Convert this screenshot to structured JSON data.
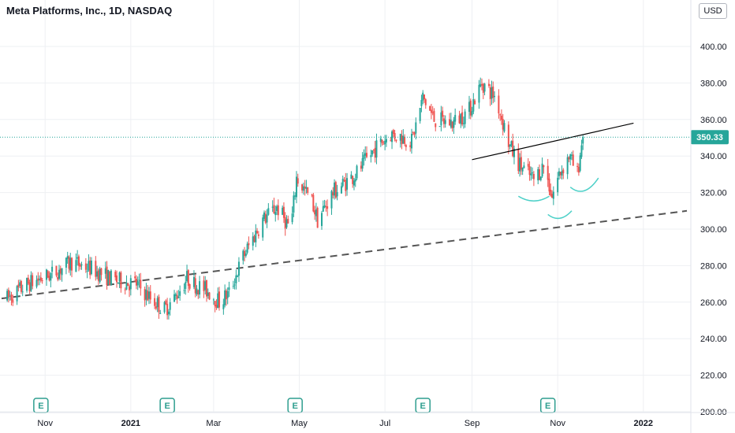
{
  "header": {
    "title": "Meta Platforms, Inc., 1D, NASDAQ",
    "currency": "USD"
  },
  "colors": {
    "up": "#26a69a",
    "down": "#ef5350",
    "last_price_line": "#26a69a",
    "trendline": "#000000",
    "dashed_line": "#555555",
    "arc": "#4dd0c8",
    "earnings_marker": "#2e9e8f",
    "grid": "#eef0f3"
  },
  "chart_data": {
    "type": "candlestick",
    "title": "Meta Platforms, Inc., 1D, NASDAQ",
    "currency": "USD",
    "ylim": [
      200,
      420
    ],
    "y_ticks": [
      "200.00",
      "220.00",
      "240.00",
      "260.00",
      "280.00",
      "300.00",
      "320.00",
      "340.00",
      "360.00",
      "380.00",
      "400.00"
    ],
    "x_ticks": [
      {
        "label": "Nov",
        "date": "2020-11-01",
        "bold": false
      },
      {
        "label": "2021",
        "date": "2021-01-01",
        "bold": true
      },
      {
        "label": "Mar",
        "date": "2021-03-01",
        "bold": false
      },
      {
        "label": "May",
        "date": "2021-05-01",
        "bold": false
      },
      {
        "label": "Jul",
        "date": "2021-07-01",
        "bold": false
      },
      {
        "label": "Sep",
        "date": "2021-09-01",
        "bold": false
      },
      {
        "label": "Nov",
        "date": "2021-11-01",
        "bold": false
      },
      {
        "label": "2022",
        "date": "2022-01-01",
        "bold": true
      }
    ],
    "x_range": [
      "2020-10-01",
      "2022-02-01"
    ],
    "last_price": 350.33,
    "last_price_label": "350.33",
    "series_anchors": [
      [
        "2020-10-05",
        262
      ],
      [
        "2020-10-20",
        270
      ],
      [
        "2020-11-05",
        275
      ],
      [
        "2020-11-20",
        282
      ],
      [
        "2020-12-05",
        278
      ],
      [
        "2020-12-20",
        272
      ],
      [
        "2021-01-05",
        270
      ],
      [
        "2021-01-15",
        262
      ],
      [
        "2021-01-25",
        256
      ],
      [
        "2021-02-01",
        262
      ],
      [
        "2021-02-10",
        273
      ],
      [
        "2021-02-15",
        270
      ],
      [
        "2021-02-25",
        266
      ],
      [
        "2021-03-05",
        260
      ],
      [
        "2021-03-12",
        265
      ],
      [
        "2021-03-22",
        285
      ],
      [
        "2021-04-05",
        305
      ],
      [
        "2021-04-15",
        312
      ],
      [
        "2021-04-25",
        300
      ],
      [
        "2021-04-29",
        328
      ],
      [
        "2021-05-10",
        315
      ],
      [
        "2021-05-14",
        305
      ],
      [
        "2021-05-25",
        320
      ],
      [
        "2021-06-10",
        330
      ],
      [
        "2021-06-25",
        345
      ],
      [
        "2021-07-05",
        352
      ],
      [
        "2021-07-15",
        350
      ],
      [
        "2021-07-20",
        348
      ],
      [
        "2021-07-28",
        372
      ],
      [
        "2021-08-05",
        360
      ],
      [
        "2021-08-18",
        358
      ],
      [
        "2021-08-30",
        365
      ],
      [
        "2021-09-08",
        380
      ],
      [
        "2021-09-18",
        372
      ],
      [
        "2021-09-28",
        345
      ],
      [
        "2021-10-05",
        335
      ],
      [
        "2021-10-15",
        327
      ],
      [
        "2021-10-22",
        335
      ],
      [
        "2021-10-28",
        318
      ],
      [
        "2021-11-02",
        330
      ],
      [
        "2021-11-09",
        340
      ],
      [
        "2021-11-15",
        330
      ],
      [
        "2021-11-19",
        352
      ]
    ],
    "earnings_dates": [
      "2020-10-29",
      "2021-01-27",
      "2021-04-28",
      "2021-07-28",
      "2021-10-25"
    ],
    "earnings_label": "E",
    "drawings": {
      "support_dashed": {
        "from": [
          "2020-10-01",
          262
        ],
        "to": [
          "2022-02-01",
          310
        ]
      },
      "neckline": {
        "from": [
          "2021-09-01",
          338
        ],
        "to": [
          "2021-12-25",
          358
        ]
      },
      "arcs": [
        {
          "from": [
            "2021-10-04",
            318
          ],
          "to": [
            "2021-10-26",
            318
          ],
          "depth": 4
        },
        {
          "from": [
            "2021-10-25",
            308
          ],
          "to": [
            "2021-11-11",
            310
          ],
          "depth": 4
        },
        {
          "from": [
            "2021-11-10",
            323
          ],
          "to": [
            "2021-11-30",
            328
          ],
          "depth": 5
        }
      ]
    }
  }
}
